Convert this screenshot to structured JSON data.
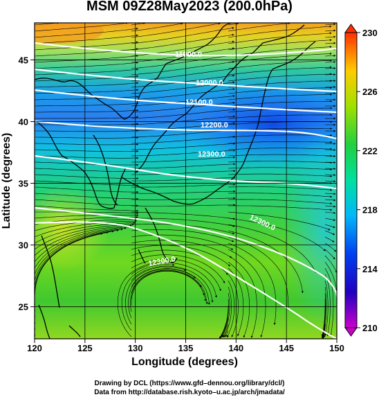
{
  "title": "MSM 09Z28May2023 (200.0hPa)",
  "axes": {
    "xlabel": "Longitude (degrees)",
    "ylabel": "Latitude  (degrees)",
    "xticks": [
      120,
      125,
      130,
      135,
      140,
      145,
      150
    ],
    "yticks": [
      25,
      30,
      35,
      40,
      45
    ]
  },
  "colorbar": {
    "ticks": [
      210,
      214,
      218,
      222,
      226,
      230
    ],
    "colors": [
      "#cc00cc",
      "#0000cc",
      "#0066ff",
      "#00ccff",
      "#00cc66",
      "#33cc33",
      "#99dd00",
      "#ffee00",
      "#ffaa00",
      "#ff3300"
    ]
  },
  "contours": [
    {
      "label": "11900.0"
    },
    {
      "label": "12000.0"
    },
    {
      "label": "12100.0"
    },
    {
      "label": "12200.0"
    },
    {
      "label": "12300.0"
    },
    {
      "label": "12300.0"
    },
    {
      "label": "12300.0"
    }
  ],
  "credits": {
    "line1": "Drawing by DCL (https://www.gfd–dennou.org/library/dcl/)",
    "line2": "Data from http://database.rish.kyoto–u.ac.jp/arch/jmadata/"
  }
}
